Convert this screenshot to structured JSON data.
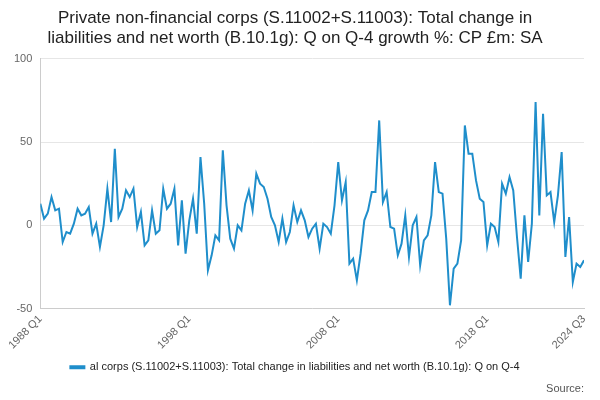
{
  "chart_data": {
    "type": "line",
    "title": "Private non-financial corps (S.11002+S.11003): Total change in liabilities and net worth (B.10.1g): Q on Q-4 growth %: CP £m: SA",
    "footer": "Source:",
    "categories": [
      "1988 Q1",
      null,
      null,
      null,
      null,
      null,
      null,
      null,
      null,
      null,
      null,
      null,
      null,
      null,
      null,
      null,
      null,
      null,
      null,
      null,
      null,
      null,
      null,
      null,
      null,
      null,
      null,
      null,
      null,
      null,
      null,
      null,
      null,
      null,
      null,
      null,
      null,
      null,
      null,
      null,
      "1998 Q1",
      null,
      null,
      null,
      null,
      null,
      null,
      null,
      null,
      null,
      null,
      null,
      null,
      null,
      null,
      null,
      null,
      null,
      null,
      null,
      null,
      null,
      null,
      null,
      null,
      null,
      null,
      null,
      null,
      null,
      null,
      null,
      null,
      null,
      null,
      null,
      null,
      null,
      null,
      null,
      "2008 Q1",
      null,
      null,
      null,
      null,
      null,
      null,
      null,
      null,
      null,
      null,
      null,
      null,
      null,
      null,
      null,
      null,
      null,
      null,
      null,
      null,
      null,
      null,
      null,
      null,
      null,
      null,
      null,
      null,
      null,
      null,
      null,
      null,
      null,
      null,
      null,
      null,
      null,
      null,
      null,
      "2018 Q1",
      null,
      null,
      null,
      null,
      null,
      null,
      null,
      null,
      null,
      null,
      null,
      null,
      null,
      null,
      null,
      null,
      null,
      null,
      null,
      null,
      null,
      null,
      null,
      null,
      null,
      "2024 Q3"
    ],
    "series": [
      {
        "name": "al corps (S.11002+S.11003): Total change in liabilities and net worth (B.10.1g): Q on Q-4",
        "color": "#1f8ecb",
        "values": [
          13,
          4,
          7,
          17,
          9,
          10,
          -10,
          -4,
          -5,
          1,
          10,
          6,
          7,
          11,
          -5,
          1,
          -13,
          0,
          22,
          2,
          46,
          5,
          10,
          21,
          17,
          22,
          -1,
          8,
          -12,
          -9,
          9,
          -5,
          -3,
          22,
          10,
          13,
          22,
          -12,
          15,
          -17,
          3,
          16,
          -5,
          41,
          13,
          -27,
          -18,
          -6,
          -9,
          45,
          12,
          -8,
          -14,
          0,
          -3,
          13,
          21,
          9,
          31,
          25,
          23,
          16,
          5,
          0,
          -10,
          4,
          -10,
          -4,
          12,
          2,
          9,
          3,
          -7,
          -2,
          1,
          -14,
          1,
          -1,
          -5,
          12,
          38,
          15,
          26,
          -23,
          -20,
          -33,
          -17,
          3,
          9,
          20,
          20,
          63,
          14,
          20,
          -1,
          -2,
          -18,
          -11,
          6,
          -19,
          0,
          5,
          -24,
          -9,
          -6,
          6,
          38,
          20,
          19,
          -8,
          -48,
          -26,
          -23,
          -9,
          60,
          43,
          43,
          27,
          16,
          14,
          -12,
          1,
          -1,
          -10,
          25,
          19,
          29,
          21,
          -7,
          -32,
          6,
          -22,
          1,
          74,
          6,
          67,
          18,
          20,
          2,
          18,
          44,
          -19,
          5,
          -34,
          -23,
          -25,
          -21
        ]
      }
    ],
    "ylim": [
      -50,
      100
    ],
    "yticks": [
      -50,
      0,
      50,
      100
    ],
    "grid": true,
    "legend": "bottom",
    "marker": "none",
    "line_style": "solid"
  }
}
